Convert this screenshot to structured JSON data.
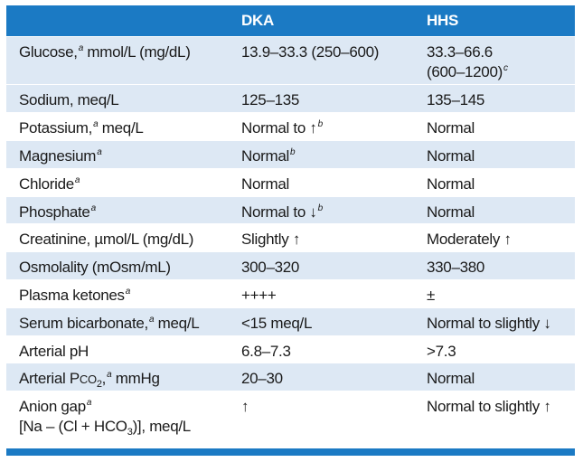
{
  "header": {
    "col_dka": "DKA",
    "col_hhs": "HHS"
  },
  "rows": [
    {
      "label": "Glucose,",
      "sup": "a",
      "label_after": " mmol/L (mg/dL)",
      "dka": "13.9–33.3 (250–600)",
      "hhs": "33.3–66.6",
      "hhs_line2": "(600–1200)",
      "hhs_sup": "c"
    },
    {
      "label": "Sodium, meq/L",
      "dka": "125–135",
      "hhs": "135–145"
    },
    {
      "label": "Potassium,",
      "sup": "a",
      "label_after": " meq/L",
      "dka": "Normal to ↑",
      "dka_sup": "b",
      "hhs": "Normal"
    },
    {
      "label": "Magnesium",
      "sup": "a",
      "dka": "Normal",
      "dka_sup": "b",
      "hhs": "Normal"
    },
    {
      "label": "Chloride",
      "sup": "a",
      "dka": "Normal",
      "hhs": "Normal"
    },
    {
      "label": "Phosphate",
      "sup": "a",
      "dka": "Normal to ↓",
      "dka_sup": "b",
      "hhs": "Normal"
    },
    {
      "label": "Creatinine, µmol/L (mg/dL)",
      "dka": "Slightly ↑",
      "hhs": "Moderately ↑"
    },
    {
      "label": "Osmolality (mOsm/mL)",
      "dka": "300–320",
      "hhs": "330–380"
    },
    {
      "label": "Plasma ketones",
      "sup": "a",
      "dka": "++++",
      "hhs": "±"
    },
    {
      "label": "Serum bicarbonate,",
      "sup": "a",
      "label_after": " meq/L",
      "dka": "<15 meq/L",
      "hhs": "Normal to slightly ↓"
    },
    {
      "label": "Arterial pH",
      "dka": "6.8–7.3",
      "hhs": ">7.3"
    },
    {
      "label": "Arterial P",
      "label_sc": "CO",
      "label_sub": "2",
      "label_comma": ",",
      "sup": "a",
      "label_after": " mmHg",
      "dka": "20–30",
      "hhs": "Normal"
    },
    {
      "label": "Anion gap",
      "sup": "a",
      "label_line2a": "[Na – (Cl + HCO",
      "label_line2_sub": "3",
      "label_line2b": ")], meq/L",
      "dka": "↑",
      "hhs": "Normal to slightly ↑"
    }
  ],
  "colors": {
    "header_bg": "#1b7ac4",
    "alt_row_bg": "#dde8f4",
    "header_text": "#ffffff"
  }
}
